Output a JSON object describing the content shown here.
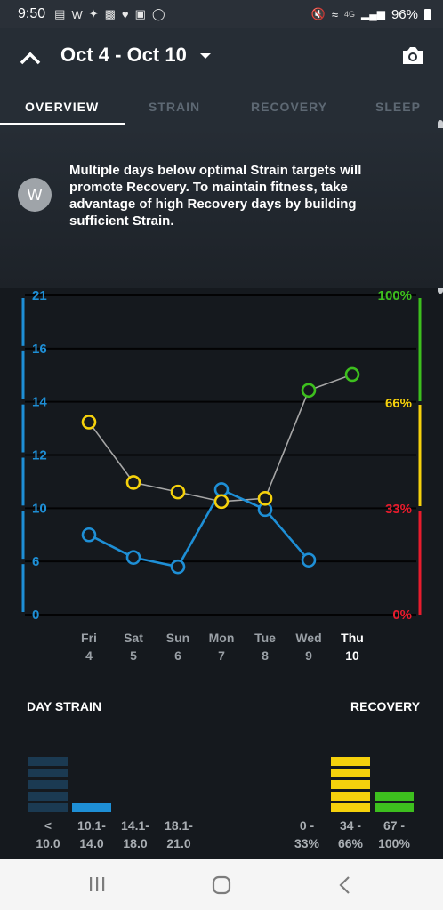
{
  "status_bar": {
    "time": "9:50",
    "left_icons": [
      "notification-icon",
      "whoop-icon",
      "twitter-icon",
      "espn-icon",
      "heart-icon",
      "gallery-icon",
      "instagram-icon"
    ],
    "network": "4G",
    "battery": "96%"
  },
  "header": {
    "date_range": "Oct 4 - Oct 10",
    "tabs": [
      {
        "label": "OVERVIEW",
        "active": true
      },
      {
        "label": "STRAIN",
        "active": false
      },
      {
        "label": "RECOVERY",
        "active": false
      },
      {
        "label": "SLEEP",
        "active": false
      }
    ]
  },
  "insight": {
    "logo": "W",
    "text": "Multiple days below optimal Strain targets will promote Recovery. To maintain fitness, take advantage of high Recovery days by building sufficient Strain."
  },
  "chart_data": {
    "type": "line",
    "categories": [
      "Fri 4",
      "Sat 5",
      "Sun 6",
      "Mon 7",
      "Tue 8",
      "Wed 9",
      "Thu 10"
    ],
    "day_names": [
      "Fri",
      "Sat",
      "Sun",
      "Mon",
      "Tue",
      "Wed",
      "Thu"
    ],
    "day_numbers": [
      "4",
      "5",
      "6",
      "7",
      "8",
      "9",
      "10"
    ],
    "highlight_day": "Thu 10",
    "left_axis": {
      "ticks": [
        "21",
        "16",
        "14",
        "12",
        "10",
        "6",
        "0"
      ],
      "color": "#1e8fd6"
    },
    "right_axis": {
      "ticks": [
        "100%",
        "66%",
        "33%",
        "0%"
      ],
      "colors": [
        "#3dbf1e",
        "#f5d10c",
        "#e81c2d"
      ]
    },
    "grid": true,
    "series": [
      {
        "name": "Day Strain",
        "color": "#1e8fd6",
        "values": [
          8.0,
          6.3,
          5.4,
          10.7,
          9.9,
          6.1,
          null
        ]
      },
      {
        "name": "Recovery",
        "color": "#a6a6a6",
        "values": [
          60,
          41,
          38,
          35,
          36,
          70,
          75
        ],
        "point_colors": [
          "#f5d10c",
          "#f5d10c",
          "#f5d10c",
          "#f5d10c",
          "#f5d10c",
          "#3dbf1e",
          "#3dbf1e"
        ]
      }
    ]
  },
  "summary": {
    "strain_title": "DAY STRAIN",
    "recovery_title": "RECOVERY",
    "strain_bins": [
      {
        "label_top": "<",
        "label_bottom": "10.0",
        "count": 5,
        "color": "#1b3a52"
      },
      {
        "label_top": "10.1-",
        "label_bottom": "14.0",
        "count": 1,
        "color": "#1e8fd6"
      },
      {
        "label_top": "14.1-",
        "label_bottom": "18.0",
        "count": 0,
        "color": "#1e8fd6"
      },
      {
        "label_top": "18.1-",
        "label_bottom": "21.0",
        "count": 0,
        "color": "#1e8fd6"
      }
    ],
    "recovery_bins": [
      {
        "label_top": "0 -",
        "label_bottom": "33%",
        "count": 0,
        "color": "#e81c2d"
      },
      {
        "label_top": "34 -",
        "label_bottom": "66%",
        "count": 5,
        "color": "#f5d10c"
      },
      {
        "label_top": "67 -",
        "label_bottom": "100%",
        "count": 2,
        "color": "#3dbf1e"
      }
    ]
  },
  "nav_bar": {
    "buttons": [
      "recent-apps-icon",
      "home-icon",
      "back-icon"
    ]
  }
}
